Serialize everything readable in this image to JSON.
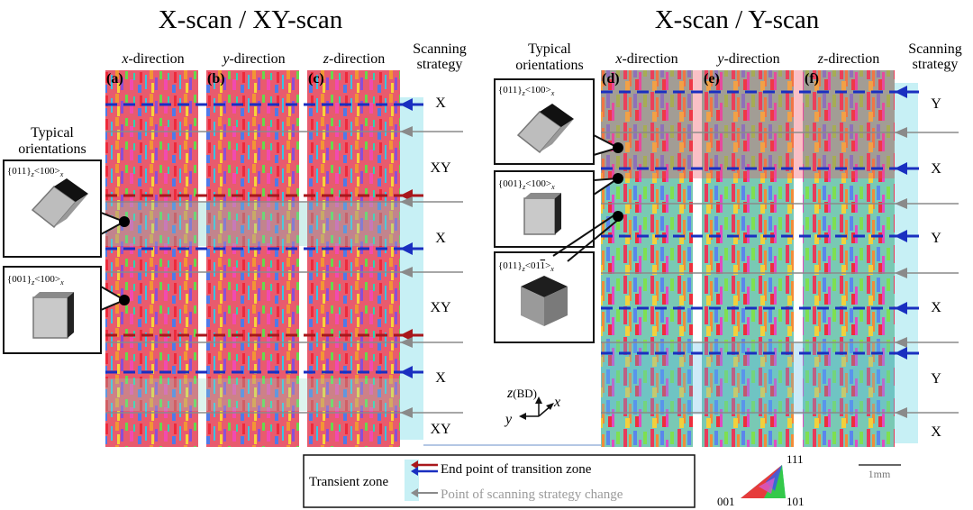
{
  "left": {
    "title": "X-scan / XY-scan",
    "columns": [
      {
        "letter": "(a)",
        "dir": "x",
        "word": "-direction"
      },
      {
        "letter": "(b)",
        "dir": "y",
        "word": "-direction"
      },
      {
        "letter": "(c)",
        "dir": "z",
        "word": "-direction"
      }
    ],
    "strategy_header": [
      "Scanning",
      "strategy"
    ],
    "strategies": [
      "X",
      "XY",
      "X",
      "XY",
      "X",
      "XY"
    ],
    "typical_label": [
      "Typical",
      "orientations"
    ],
    "orientations": [
      {
        "base": "{011}",
        "sub": "z",
        "mid": "<100>",
        "sub2": "x"
      },
      {
        "base": "{001}",
        "sub": "z",
        "mid": "<100>",
        "sub2": "x"
      }
    ]
  },
  "right": {
    "title": "X-scan / Y-scan",
    "columns": [
      {
        "letter": "(d)",
        "dir": "x",
        "word": "-direction"
      },
      {
        "letter": "(e)",
        "dir": "y",
        "word": "-direction"
      },
      {
        "letter": "(f)",
        "dir": "z",
        "word": "-direction"
      }
    ],
    "strategy_header": [
      "Scanning",
      "strategy"
    ],
    "strategies": [
      "Y",
      "X",
      "Y",
      "X",
      "Y",
      "X"
    ],
    "typical_label": [
      "Typical",
      "orientations"
    ],
    "orientations": [
      {
        "base": "{011}",
        "sub": "z",
        "mid": "<100>",
        "sub2": "x"
      },
      {
        "base": "{001}",
        "sub": "z",
        "mid": "<100>",
        "sub2": "x"
      },
      {
        "base": "{011}",
        "sub": "z",
        "mid": "<01",
        "bar": "1",
        "end": ">",
        "sub2": "x"
      }
    ]
  },
  "axes": {
    "z": "z",
    "z_note": "(BD)",
    "x": "x",
    "y": "y"
  },
  "legend": {
    "label": "Transient zone",
    "items": [
      "End point of transition zone",
      "Point of scanning strategy change"
    ]
  },
  "ipf": {
    "top": "111",
    "left": "001",
    "right": "101"
  },
  "scale": {
    "label": "1mm"
  },
  "colors": {
    "blue_line": "#1a2fc0",
    "red_line": "#a8171c",
    "gray_line": "#8a8a8a",
    "transient_cyan": "#c7f0f5"
  }
}
